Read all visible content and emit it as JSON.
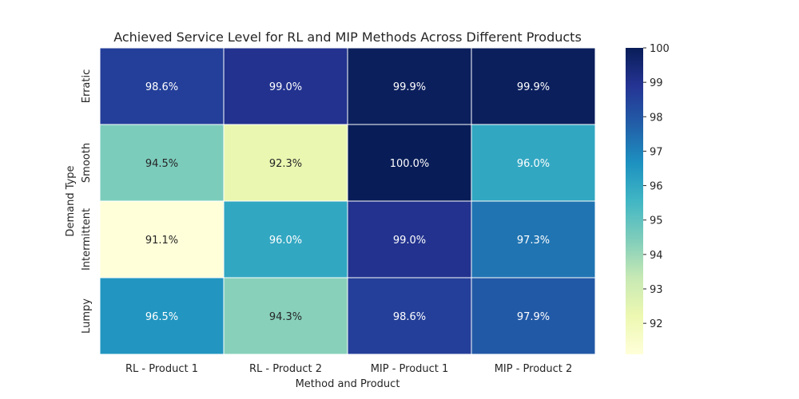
{
  "chart_data": {
    "type": "heatmap",
    "title": "Achieved Service Level for RL and MIP Methods Across Different Products",
    "xlabel": "Method and Product",
    "ylabel": "Demand Type",
    "x_categories": [
      "RL - Product 1",
      "RL - Product 2",
      "MIP - Product 1",
      "MIP - Product 2"
    ],
    "y_categories": [
      "Erratic",
      "Smooth",
      "Intermittent",
      "Lumpy"
    ],
    "values": [
      [
        98.6,
        99.0,
        99.9,
        99.9
      ],
      [
        94.5,
        92.3,
        100.0,
        96.0
      ],
      [
        91.1,
        96.0,
        99.0,
        97.3
      ],
      [
        96.5,
        94.3,
        98.6,
        97.9
      ]
    ],
    "cell_labels": [
      [
        "98.6%",
        "99.0%",
        "99.9%",
        "99.9%"
      ],
      [
        "94.5%",
        "92.3%",
        "100.0%",
        "96.0%"
      ],
      [
        "91.1%",
        "96.0%",
        "99.0%",
        "97.3%"
      ],
      [
        "96.5%",
        "94.3%",
        "98.6%",
        "97.9%"
      ]
    ],
    "colorbar": {
      "vmin": 91.1,
      "vmax": 100.0,
      "ticks": [
        92,
        93,
        94,
        95,
        96,
        97,
        98,
        99,
        100
      ],
      "colormap": "YlGnBu"
    },
    "grid": false,
    "legend": "colorbar-right"
  }
}
